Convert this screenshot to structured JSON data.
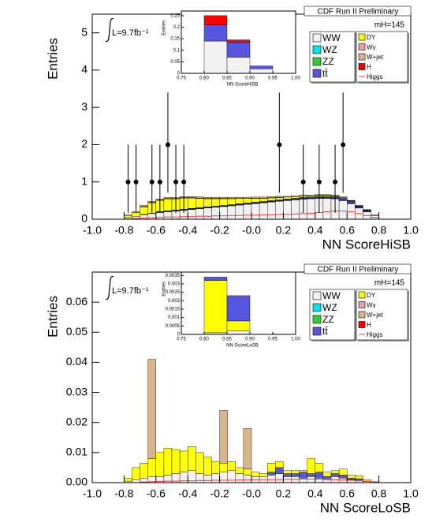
{
  "chart_data": [
    {
      "type": "histogram",
      "stacked": true,
      "title": "CDF Run II Preliminary",
      "luminosity": "L=9.7fb⁻¹",
      "mass_label": "mH=145",
      "x_label": "NN ScoreHiSB",
      "y_label": "Entries",
      "legend": "upper right",
      "xlim": [
        -1,
        1
      ],
      "ylim": [
        0,
        5.5
      ],
      "xticks": [
        {
          "value": -1,
          "label": "-1.0"
        },
        -0.8,
        -0.6,
        -0.4,
        -0.2,
        {
          "value": 0,
          "label": "-0.0"
        },
        0.2,
        0.4,
        0.6,
        0.8,
        {
          "value": 1,
          "label": "1.0"
        }
      ],
      "yticks": [
        0,
        1,
        2,
        3,
        4,
        5
      ],
      "bins": [
        -0.8,
        -0.75,
        -0.7,
        -0.65,
        -0.6,
        -0.55,
        -0.5,
        -0.45,
        -0.4,
        -0.35,
        -0.3,
        -0.25,
        -0.2,
        -0.15,
        -0.1,
        -0.05,
        0,
        0.05,
        0.1,
        0.15,
        0.2,
        0.25,
        0.3,
        0.35,
        0.4,
        0.45,
        0.5,
        0.55,
        0.6,
        0.65,
        0.7,
        0.75,
        0.8
      ],
      "series": [
        {
          "name": "WW",
          "color": "#f2f2f2",
          "values": [
            0.05,
            0.08,
            0.12,
            0.15,
            0.18,
            0.2,
            0.22,
            0.24,
            0.26,
            0.28,
            0.3,
            0.32,
            0.34,
            0.36,
            0.38,
            0.4,
            0.42,
            0.44,
            0.46,
            0.48,
            0.5,
            0.52,
            0.54,
            0.55,
            0.56,
            0.56,
            0.55,
            0.5,
            0.42,
            0.3,
            0.2,
            0.1
          ]
        },
        {
          "name": "WZ",
          "color": "#00e5ee",
          "values": [
            0,
            0,
            0.005,
            0.005,
            0.01,
            0.01,
            0.01,
            0.01,
            0.01,
            0.01,
            0.01,
            0.01,
            0.01,
            0.01,
            0.01,
            0.01,
            0.01,
            0.01,
            0.01,
            0.01,
            0.01,
            0.01,
            0.01,
            0.01,
            0.01,
            0.01,
            0.01,
            0.01,
            0.01,
            0.005,
            0.005,
            0
          ]
        },
        {
          "name": "ZZ",
          "color": "#33cc33",
          "values": [
            0,
            0,
            0.005,
            0.005,
            0.01,
            0.01,
            0.01,
            0.01,
            0.01,
            0.01,
            0.01,
            0.01,
            0.01,
            0.01,
            0.01,
            0.01,
            0.01,
            0.01,
            0.01,
            0.01,
            0.01,
            0.01,
            0.01,
            0.01,
            0.01,
            0.01,
            0.01,
            0.01,
            0.01,
            0.005,
            0.005,
            0
          ]
        },
        {
          "name": "tt̄",
          "color": "#5555dd",
          "values": [
            0,
            0,
            0,
            0,
            0.005,
            0.005,
            0.005,
            0.01,
            0.01,
            0.01,
            0.01,
            0.01,
            0.01,
            0.01,
            0.015,
            0.015,
            0.02,
            0.02,
            0.02,
            0.02,
            0.025,
            0.025,
            0.03,
            0.03,
            0.035,
            0.04,
            0.04,
            0.04,
            0.04,
            0.03,
            0.02,
            0.01
          ]
        },
        {
          "name": "DY",
          "color": "#ffff00",
          "values": [
            0.05,
            0.1,
            0.2,
            0.28,
            0.3,
            0.32,
            0.3,
            0.3,
            0.28,
            0.25,
            0.22,
            0.2,
            0.18,
            0.16,
            0.14,
            0.12,
            0.1,
            0.08,
            0.07,
            0.06,
            0.05,
            0.04,
            0.04,
            0.03,
            0.03,
            0.02,
            0.02,
            0.02,
            0.01,
            0.01,
            0.01,
            0
          ]
        },
        {
          "name": "Wγ",
          "color": "#e8a0a0",
          "values": [
            0,
            0,
            0.01,
            0.01,
            0.01,
            0.01,
            0.01,
            0.01,
            0.01,
            0.01,
            0.01,
            0.01,
            0.01,
            0.005,
            0.005,
            0.005,
            0.005,
            0.005,
            0.005,
            0.005,
            0,
            0,
            0,
            0,
            0,
            0,
            0,
            0,
            0,
            0,
            0,
            0
          ]
        },
        {
          "name": "W+jet",
          "color": "#d9b38c",
          "values": [
            0.01,
            0.02,
            0.03,
            0.03,
            0.03,
            0.03,
            0.03,
            0.03,
            0.03,
            0.03,
            0.03,
            0.03,
            0.03,
            0.03,
            0.03,
            0.03,
            0.03,
            0.03,
            0.03,
            0.03,
            0.02,
            0.02,
            0.02,
            0.02,
            0.02,
            0.02,
            0.02,
            0.02,
            0.01,
            0.01,
            0.01,
            0
          ]
        },
        {
          "name": "H",
          "color": "#ff0000",
          "values": [
            0,
            0,
            0,
            0,
            0,
            0,
            0,
            0,
            0,
            0,
            0,
            0,
            0,
            0,
            0,
            0,
            0,
            0,
            0,
            0,
            0,
            0,
            0,
            0,
            0,
            0,
            0,
            0,
            0.005,
            0.01,
            0.01,
            0.005
          ]
        },
        {
          "name": "Higgs",
          "color": "#ff3333",
          "stacked": false,
          "values": [
            0.01,
            0.02,
            0.03,
            0.04,
            0.05,
            0.06,
            0.06,
            0.07,
            0.07,
            0.08,
            0.08,
            0.09,
            0.09,
            0.1,
            0.1,
            0.11,
            0.11,
            0.12,
            0.12,
            0.13,
            0.13,
            0.14,
            0.15,
            0.16,
            0.18,
            0.2,
            0.22,
            0.22,
            0.2,
            0.15,
            0.1,
            0.05
          ]
        }
      ],
      "points": {
        "x": [
          -0.775,
          -0.725,
          -0.625,
          -0.575,
          -0.525,
          -0.475,
          -0.425,
          0.175,
          0.325,
          0.425,
          0.525,
          0.575
        ],
        "values": [
          1,
          1,
          1,
          1,
          2,
          1,
          1,
          2,
          1,
          1,
          1,
          2
        ],
        "err_low": [
          0.83,
          0.83,
          0.83,
          0.83,
          1.29,
          0.83,
          0.83,
          1.29,
          0.83,
          0.83,
          0.83,
          1.29
        ],
        "err_high": [
          1,
          1,
          1,
          1,
          1.4,
          1,
          1,
          1.4,
          1,
          1,
          1,
          1.4
        ]
      }
    },
    {
      "type": "histogram",
      "stacked": true,
      "x_label": "NN ScoreHiSB",
      "y_label": "Entries",
      "xlim": [
        0.75,
        1
      ],
      "ylim": [
        0,
        0.27
      ],
      "xticks": [
        0.75,
        {
          "value": 0.8,
          "label": "0.80"
        },
        0.85,
        {
          "value": 0.9,
          "label": "0.90"
        },
        0.95,
        {
          "value": 1,
          "label": "1.00"
        }
      ],
      "yticks": [
        0,
        0.05,
        0.1,
        0.15,
        0.2,
        0.25
      ],
      "bins": [
        0.75,
        0.8,
        0.85,
        0.9,
        0.95,
        1
      ],
      "series": [
        {
          "color": "#f2f2f2",
          "values": [
            0,
            0.14,
            0.07,
            0.02,
            0
          ]
        },
        {
          "color": "#5555dd",
          "values": [
            0,
            0.07,
            0.065,
            0.012,
            0
          ]
        },
        {
          "color": "#ff0000",
          "values": [
            0,
            0.04,
            0.01,
            0,
            0
          ]
        }
      ]
    },
    {
      "type": "histogram",
      "stacked": true,
      "title": "CDF Run II Preliminary",
      "luminosity": "L=9.7fb⁻¹",
      "mass_label": "mH=145",
      "x_label": "NN ScoreLoSB",
      "y_label": "Entries",
      "legend": "upper right",
      "xlim": [
        -1,
        1
      ],
      "ylim": [
        0,
        0.07
      ],
      "xticks": [
        {
          "value": -1,
          "label": "-1.0"
        },
        -0.8,
        -0.6,
        -0.4,
        -0.2,
        {
          "value": 0,
          "label": "-0.0"
        },
        0.2,
        0.4,
        0.6,
        0.8,
        {
          "value": 1,
          "label": "1.0"
        }
      ],
      "yticks": [
        {
          "value": 0,
          "label": "0.00"
        },
        0.01,
        0.02,
        0.03,
        0.04,
        0.05,
        0.06
      ],
      "bins": [
        -0.8,
        -0.75,
        -0.7,
        -0.65,
        -0.6,
        -0.55,
        -0.5,
        -0.45,
        -0.4,
        -0.35,
        -0.3,
        -0.25,
        -0.2,
        -0.15,
        -0.1,
        -0.05,
        0,
        0.05,
        0.1,
        0.15,
        0.2,
        0.25,
        0.3,
        0.35,
        0.4,
        0.45,
        0.5,
        0.55,
        0.6,
        0.65,
        0.7,
        0.75,
        0.8
      ],
      "series": [
        {
          "name": "WW",
          "color": "#f2f2f2",
          "values": [
            0.0005,
            0.001,
            0.0015,
            0.002,
            0.002,
            0.0025,
            0.003,
            0.0035,
            0.004,
            0.003,
            0.0025,
            0.003,
            0.0035,
            0.004,
            0.003,
            0.0025,
            0.002,
            0.002,
            0.0025,
            0.003,
            0.002,
            0.002,
            0.0015,
            0.002,
            0.0015,
            0.001,
            0.002,
            0.0015,
            0.001,
            0.0008,
            0.0005,
            0.0003
          ]
        },
        {
          "name": "WZ",
          "color": "#00e5ee",
          "values": [
            0,
            0,
            0,
            0,
            0,
            0,
            0,
            0,
            0,
            0,
            0,
            0,
            0,
            0,
            0,
            0,
            0,
            0,
            0,
            0,
            0,
            0,
            0,
            0,
            0,
            0,
            0,
            0,
            0,
            0,
            0,
            0
          ]
        },
        {
          "name": "ZZ",
          "color": "#33cc33",
          "values": [
            0,
            0,
            0,
            0,
            0,
            0,
            0,
            0,
            0,
            0,
            0,
            0,
            0,
            0,
            0,
            0,
            0,
            0,
            0,
            0,
            0,
            0,
            0,
            0,
            0,
            0,
            0,
            0,
            0,
            0,
            0,
            0
          ]
        },
        {
          "name": "tt̄",
          "color": "#5555dd",
          "values": [
            0,
            0,
            0,
            0,
            0,
            0,
            0,
            0,
            0,
            0,
            0,
            0,
            0,
            0,
            0,
            0,
            0,
            0,
            0.001,
            0.002,
            0.001,
            0.001,
            0.002,
            0.001,
            0.002,
            0.001,
            0.001,
            0.001,
            0.0005,
            0.0005,
            0,
            0
          ]
        },
        {
          "name": "DY",
          "color": "#ffff00",
          "values": [
            0.001,
            0.004,
            0.005,
            0.006,
            0.008,
            0.009,
            0.008,
            0.007,
            0.008,
            0.007,
            0.006,
            0.004,
            0.003,
            0.003,
            0.002,
            0.002,
            0.0015,
            0.001,
            0.003,
            0.002,
            0.001,
            0.001,
            0.0005,
            0.005,
            0.003,
            0.0015,
            0.001,
            0.002,
            0.001,
            0.001,
            0.0005,
            0
          ]
        },
        {
          "name": "Wγ",
          "color": "#e8a0a0",
          "values": [
            0,
            0,
            0,
            0,
            0,
            0,
            0,
            0,
            0,
            0,
            0,
            0,
            0,
            0,
            0,
            0,
            0,
            0,
            0,
            0,
            0,
            0,
            0,
            0,
            0,
            0,
            0,
            0,
            0,
            0,
            0,
            0
          ]
        },
        {
          "name": "W+jet",
          "color": "#d9b38c",
          "values": [
            0,
            0,
            0,
            0.033,
            0,
            0,
            0,
            0,
            0,
            0,
            0,
            0,
            0.0175,
            0,
            0,
            0.0135,
            0,
            0,
            0,
            0,
            0,
            0,
            0,
            0,
            0,
            0,
            0,
            0,
            0,
            0,
            0,
            0
          ]
        },
        {
          "name": "H",
          "color": "#ff0000",
          "values": [
            0,
            0,
            0,
            0,
            0,
            0,
            0,
            0,
            0,
            0,
            0,
            0,
            0,
            0,
            0,
            0,
            0,
            0,
            0,
            0,
            0,
            0,
            0,
            0,
            0,
            0,
            0,
            0,
            0,
            0,
            0,
            0
          ]
        },
        {
          "name": "Higgs",
          "color": "#ff3333",
          "stacked": false,
          "values": [
            0,
            0,
            0.0002,
            0.0003,
            0.0004,
            0.0005,
            0.0005,
            0.0006,
            0.0006,
            0.0007,
            0.0007,
            0.0008,
            0.0008,
            0.0008,
            0.0009,
            0.0009,
            0.001,
            0.001,
            0.001,
            0.001,
            0.0011,
            0.0011,
            0.0012,
            0.0012,
            0.0012,
            0.0011,
            0.001,
            0.0009,
            0.0008,
            0.0006,
            0.0004,
            0.0002
          ]
        }
      ]
    },
    {
      "type": "histogram",
      "stacked": true,
      "x_label": "NN ScoreLoSB",
      "y_label": "Entries",
      "xlim": [
        0.75,
        1
      ],
      "ylim": [
        0,
        0.0037
      ],
      "xticks": [
        0.75,
        {
          "value": 0.8,
          "label": "0.80"
        },
        0.85,
        {
          "value": 0.9,
          "label": "0.90"
        },
        0.95,
        {
          "value": 1,
          "label": "1.00"
        }
      ],
      "yticks": [
        0,
        0.0005,
        0.001,
        0.0015,
        0.002,
        0.0025,
        0.003,
        0.0035
      ],
      "bins": [
        0.75,
        0.8,
        0.85,
        0.9,
        0.95,
        1
      ],
      "series": [
        {
          "color": "#f2f2f2",
          "values": [
            0,
            0.0001,
            0.0002,
            0,
            0
          ]
        },
        {
          "color": "#ffff00",
          "values": [
            0,
            0.0031,
            0.0006,
            0,
            0
          ]
        },
        {
          "color": "#5555dd",
          "values": [
            0,
            0.0002,
            0.0015,
            0,
            0
          ]
        }
      ]
    }
  ]
}
